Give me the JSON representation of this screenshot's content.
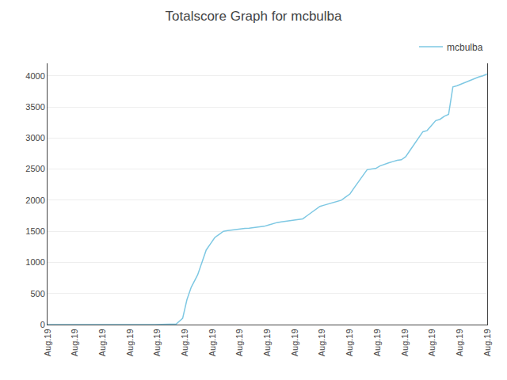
{
  "chart_data": {
    "type": "line",
    "title": "Totalscore Graph for mcbulba",
    "x": [
      0,
      1,
      2,
      3,
      4,
      5,
      6,
      6.3,
      6.5,
      6.7,
      7,
      7.2,
      7.4,
      7.6,
      7.8,
      8,
      8.1,
      8.2,
      8.4,
      8.6,
      8.8,
      9,
      9.2,
      9.4,
      9.5,
      9.7,
      9.9,
      10.1,
      10.3,
      10.5,
      10.7,
      10.9,
      11.1,
      11.3,
      11.5,
      11.7,
      11.9,
      12.1,
      12.3,
      12.5,
      12.7,
      12.9,
      13.1,
      13.3,
      13.5,
      13.7,
      13.9,
      14.1,
      14.3,
      14.5,
      14.7,
      14.9,
      15.1,
      15.3,
      15.5,
      15.7,
      15.9,
      16.1,
      16.3,
      16.5,
      16.7,
      16.9,
      17.1,
      17.3,
      17.5,
      17.7,
      17.9,
      18.1,
      18.3,
      18.5,
      18.7,
      18.9,
      19.1,
      19.3,
      19.5,
      19.7,
      19.9,
      20.1,
      20.3,
      20.5
    ],
    "series": [
      {
        "name": "mcbulba",
        "color": "#7ec8e3",
        "values": [
          0,
          0,
          0,
          0,
          0,
          0,
          10,
          100,
          400,
          600,
          800,
          1000,
          1200,
          1300,
          1400,
          1450,
          1480,
          1500,
          1510,
          1520,
          1530,
          1540,
          1545,
          1550,
          1555,
          1560,
          1570,
          1580,
          1600,
          1620,
          1640,
          1650,
          1660,
          1670,
          1680,
          1690,
          1700,
          1750,
          1800,
          1850,
          1900,
          1920,
          1940,
          1960,
          1980,
          2000,
          2050,
          2100,
          2200,
          2300,
          2400,
          2490,
          2500,
          2510,
          2550,
          2580,
          2600,
          2620,
          2640,
          2650,
          2700,
          2800,
          2900,
          3000,
          3100,
          3120,
          3200,
          3280,
          3300,
          3350,
          3380,
          3820,
          3840,
          3870,
          3900,
          3930,
          3950,
          3980,
          4000,
          4030
        ]
      }
    ],
    "xlim": [
      0,
      20.5
    ],
    "xticks": [
      {
        "value": 0,
        "label": "Aug.19"
      },
      {
        "value": 1.28125,
        "label": "Aug.19"
      },
      {
        "value": 2.5625,
        "label": "Aug.19"
      },
      {
        "value": 3.84375,
        "label": "Aug.19"
      },
      {
        "value": 5.125,
        "label": "Aug.19"
      },
      {
        "value": 6.40625,
        "label": "Aug.19"
      },
      {
        "value": 7.6875,
        "label": "Aug.19"
      },
      {
        "value": 8.96875,
        "label": "Aug.19"
      },
      {
        "value": 10.25,
        "label": "Aug.19"
      },
      {
        "value": 11.53125,
        "label": "Aug.19"
      },
      {
        "value": 12.8125,
        "label": "Aug.19"
      },
      {
        "value": 14.09375,
        "label": "Aug.19"
      },
      {
        "value": 15.375,
        "label": "Aug.19"
      },
      {
        "value": 16.65625,
        "label": "Aug.19"
      },
      {
        "value": 17.9375,
        "label": "Aug.19"
      },
      {
        "value": 19.21875,
        "label": "Aug.19"
      },
      {
        "value": 20.5,
        "label": "Aug.19"
      }
    ],
    "ylim": [
      0,
      4200
    ],
    "yticks": [
      0,
      500,
      1000,
      1500,
      2000,
      2500,
      3000,
      3500,
      4000
    ],
    "grid": "y",
    "legend": "upper right"
  }
}
